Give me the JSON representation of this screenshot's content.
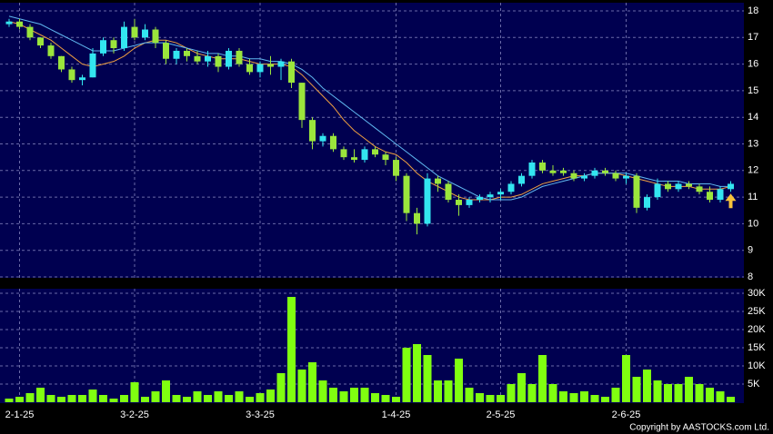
{
  "chart_data": [
    {
      "type": "candlestick",
      "categories": [
        null,
        "2-1-25",
        null,
        null,
        null,
        null,
        null,
        null,
        null,
        null,
        null,
        null,
        "3-2-25",
        null,
        null,
        null,
        null,
        null,
        null,
        null,
        null,
        null,
        null,
        null,
        "3-3-25",
        null,
        null,
        null,
        null,
        null,
        null,
        null,
        null,
        null,
        null,
        null,
        null,
        "1-4-25",
        null,
        null,
        null,
        null,
        null,
        null,
        null,
        null,
        null,
        "2-5-25",
        null,
        null,
        null,
        null,
        null,
        null,
        null,
        null,
        null,
        null,
        null,
        "2-6-25",
        null,
        null,
        null,
        null,
        null,
        null,
        null,
        null,
        null,
        null
      ],
      "open": [
        17.5,
        17.6,
        17.4,
        17.0,
        16.7,
        16.3,
        15.8,
        15.4,
        15.5,
        16.4,
        16.9,
        16.6,
        17.4,
        17.0,
        17.3,
        16.8,
        16.2,
        16.5,
        16.3,
        16.1,
        16.3,
        15.9,
        16.5,
        16.0,
        15.7,
        16.0,
        15.9,
        16.1,
        15.3,
        13.9,
        13.1,
        13.3,
        12.8,
        12.5,
        12.4,
        12.8,
        12.6,
        12.4,
        11.8,
        10.4,
        10.0,
        11.7,
        11.5,
        10.9,
        10.7,
        10.9,
        11.0,
        11.1,
        11.2,
        11.5,
        11.8,
        12.3,
        12.0,
        12.0,
        11.9,
        11.7,
        11.8,
        12.0,
        11.9,
        11.7,
        11.8,
        10.6,
        11.0,
        11.5,
        11.3,
        11.5,
        11.4,
        11.2,
        10.9,
        11.3
      ],
      "high": [
        17.7,
        17.7,
        17.5,
        17.0,
        16.8,
        16.3,
        15.9,
        15.6,
        16.6,
        17.0,
        17.0,
        17.6,
        17.7,
        17.5,
        17.4,
        16.9,
        16.6,
        16.6,
        16.5,
        16.5,
        16.4,
        16.6,
        16.6,
        16.2,
        16.1,
        16.3,
        16.2,
        16.2,
        15.3,
        14.0,
        13.4,
        13.4,
        12.9,
        12.8,
        12.9,
        12.9,
        12.7,
        12.5,
        11.9,
        10.6,
        11.9,
        11.8,
        11.6,
        11.1,
        11.0,
        11.1,
        11.2,
        11.3,
        11.6,
        11.9,
        12.4,
        12.4,
        12.2,
        12.1,
        12.0,
        11.9,
        12.1,
        12.1,
        12.0,
        11.9,
        11.9,
        11.1,
        11.7,
        11.6,
        11.6,
        11.6,
        11.5,
        11.4,
        11.4,
        11.6
      ],
      "low": [
        17.4,
        17.3,
        16.9,
        16.6,
        16.2,
        15.7,
        15.3,
        15.2,
        15.5,
        16.3,
        16.4,
        16.5,
        16.9,
        16.9,
        16.6,
        16.0,
        16.0,
        16.1,
        16.0,
        15.9,
        15.7,
        15.8,
        15.9,
        15.6,
        15.5,
        15.6,
        15.4,
        15.1,
        13.6,
        12.8,
        12.9,
        12.7,
        12.4,
        12.3,
        12.3,
        12.5,
        12.2,
        11.6,
        10.1,
        9.6,
        9.9,
        11.2,
        10.8,
        10.3,
        10.6,
        10.8,
        10.8,
        10.9,
        11.1,
        11.4,
        11.7,
        11.9,
        11.8,
        11.8,
        11.6,
        11.6,
        11.7,
        11.8,
        11.6,
        11.5,
        10.4,
        10.5,
        10.9,
        11.2,
        11.2,
        11.3,
        11.1,
        10.8,
        10.8,
        11.2
      ],
      "close": [
        17.6,
        17.4,
        17.0,
        16.7,
        16.3,
        15.8,
        15.4,
        15.5,
        16.4,
        16.9,
        16.6,
        17.4,
        17.0,
        17.3,
        16.8,
        16.2,
        16.5,
        16.3,
        16.1,
        16.3,
        15.9,
        16.5,
        16.0,
        15.7,
        16.0,
        15.9,
        16.1,
        15.3,
        13.9,
        13.1,
        13.3,
        12.8,
        12.5,
        12.4,
        12.8,
        12.6,
        12.4,
        11.8,
        10.4,
        10.0,
        11.7,
        11.5,
        10.9,
        10.7,
        10.9,
        11.0,
        11.1,
        11.2,
        11.5,
        11.8,
        12.3,
        12.0,
        11.9,
        11.9,
        11.7,
        11.8,
        12.0,
        11.9,
        11.7,
        11.8,
        10.6,
        11.0,
        11.5,
        11.3,
        11.5,
        11.4,
        11.2,
        10.9,
        11.3,
        11.5
      ],
      "up_color": "#33e6f0",
      "down_color": "#9be53c",
      "series": [
        {
          "color": "#f0a040",
          "values": [
            17.6,
            17.5,
            17.3,
            17.1,
            16.9,
            16.6,
            16.3,
            16.0,
            15.9,
            16.0,
            16.1,
            16.3,
            16.6,
            16.8,
            16.9,
            16.9,
            16.8,
            16.6,
            16.4,
            16.3,
            16.2,
            16.2,
            16.2,
            16.1,
            16.0,
            16.0,
            16.0,
            15.9,
            15.6,
            15.2,
            14.8,
            14.4,
            13.9,
            13.5,
            13.2,
            12.9,
            12.7,
            12.6,
            12.3,
            11.9,
            11.6,
            11.4,
            11.2,
            11.0,
            10.9,
            10.9,
            10.9,
            11.0,
            11.0,
            11.1,
            11.3,
            11.5,
            11.6,
            11.7,
            11.8,
            11.8,
            11.9,
            11.9,
            11.9,
            11.8,
            11.7,
            11.6,
            11.5,
            11.4,
            11.4,
            11.4,
            11.3,
            11.3,
            11.3,
            11.4
          ]
        },
        {
          "color": "#60b8f0",
          "values": [
            17.8,
            17.7,
            17.6,
            17.5,
            17.3,
            17.1,
            16.9,
            16.7,
            16.5,
            16.5,
            16.5,
            16.6,
            16.7,
            16.8,
            16.8,
            16.8,
            16.7,
            16.6,
            16.5,
            16.4,
            16.4,
            16.3,
            16.3,
            16.2,
            16.2,
            16.1,
            16.1,
            16.0,
            15.8,
            15.5,
            15.1,
            14.8,
            14.5,
            14.2,
            13.9,
            13.6,
            13.3,
            13.0,
            12.7,
            12.4,
            12.1,
            11.8,
            11.6,
            11.4,
            11.2,
            11.0,
            10.9,
            10.9,
            10.9,
            11.0,
            11.2,
            11.4,
            11.5,
            11.6,
            11.7,
            11.8,
            11.9,
            11.9,
            11.9,
            11.9,
            11.8,
            11.7,
            11.6,
            11.6,
            11.6,
            11.5,
            11.5,
            11.5,
            11.4,
            11.4
          ]
        }
      ],
      "ylim": [
        8,
        18
      ],
      "yticks": [
        8,
        9,
        10,
        11,
        12,
        13,
        14,
        15,
        16,
        17,
        18
      ],
      "grid": true
    },
    {
      "type": "bar",
      "color": "#80ff10",
      "values": [
        1000,
        1500,
        2500,
        4000,
        2000,
        1500,
        2000,
        2000,
        3500,
        2000,
        1000,
        2000,
        5500,
        1500,
        3000,
        6000,
        2000,
        1500,
        3000,
        2000,
        3000,
        2000,
        3000,
        1500,
        2500,
        3500,
        8000,
        29000,
        9000,
        11000,
        6000,
        4000,
        3000,
        4000,
        4000,
        2500,
        2000,
        1500,
        15000,
        16000,
        13000,
        6000,
        6000,
        12000,
        4000,
        2500,
        2000,
        2000,
        5000,
        8000,
        5000,
        13000,
        5000,
        3000,
        2500,
        3000,
        2000,
        1500,
        4000,
        13000,
        7000,
        9000,
        6000,
        5000,
        5000,
        7000,
        5000,
        4000,
        3000,
        1500
      ],
      "ylim": [
        0,
        30000
      ],
      "yticks": [
        {
          "value": 5000,
          "label": "5K"
        },
        {
          "value": 10000,
          "label": "10K"
        },
        {
          "value": 15000,
          "label": "15K"
        },
        {
          "value": 20000,
          "label": "20K"
        },
        {
          "value": 25000,
          "label": "25K"
        },
        {
          "value": 30000,
          "label": "30K"
        }
      ],
      "grid": true,
      "footnote": "Copyright by AASTOCKS.com Ltd."
    }
  ]
}
